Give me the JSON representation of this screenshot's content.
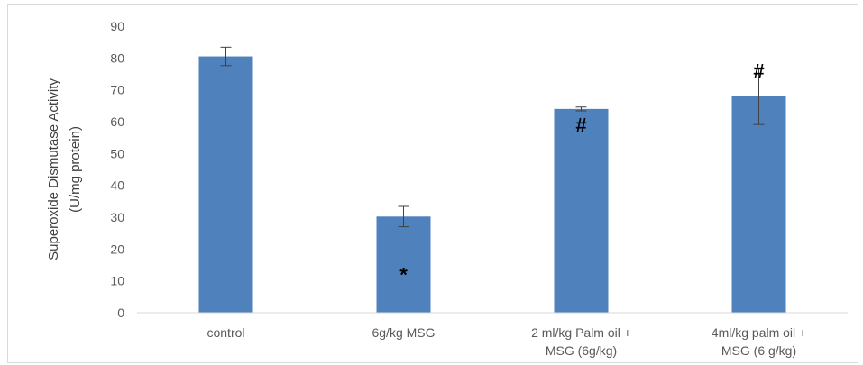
{
  "chart_data": {
    "type": "bar",
    "title": "",
    "ylabel_lines": [
      "Superoxide Dismutase Activity",
      "(U/mg protein)"
    ],
    "xlabel": "",
    "ylim": [
      0,
      90
    ],
    "yticks": [
      0,
      10,
      20,
      30,
      40,
      50,
      60,
      70,
      80,
      90
    ],
    "categories": [
      [
        "control"
      ],
      [
        "6g/kg MSG"
      ],
      [
        "2 ml/kg Palm oil +",
        "MSG (6g/kg)"
      ],
      [
        "4ml/kg palm oil +",
        "MSG (6 g/kg)"
      ]
    ],
    "values": [
      80.5,
      30.2,
      64.0,
      68.0
    ],
    "errors": [
      2.9,
      3.2,
      0.6,
      8.9
    ],
    "annotations": [
      "",
      "*",
      "#",
      "#"
    ],
    "annotation_y": [
      null,
      12,
      59,
      76
    ],
    "grid": false,
    "legend": "none",
    "bar_color": "#4f81bd",
    "error_color": "#404040"
  }
}
